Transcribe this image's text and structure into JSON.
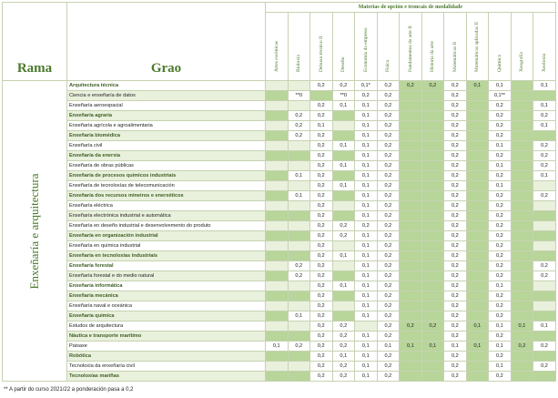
{
  "header": {
    "title": "Materias de opción e troncais de modalidade",
    "rama_label": "Rama",
    "grao_label": "Grao"
  },
  "subjects": [
    "Artes escénicas",
    "Bioloxía",
    "Debuxo técnico II",
    "Deseño",
    "Economía da empresa",
    "Física",
    "Fundamentos da arte II",
    "Historia da arte",
    "Matemáticas II",
    "Matemáticas aplicadas II",
    "Química",
    "Xeografía",
    "Xeoloxía"
  ],
  "rama": "Enxeñaría e arquitectura",
  "rows": [
    {
      "name": "Arquitectura técnica",
      "bold": true,
      "values": [
        "",
        "",
        "0,2",
        "0,2",
        "0,1*",
        "0,2",
        "0,2",
        "0,2",
        "0,2",
        "0,1",
        "0,1",
        "",
        "0,1"
      ]
    },
    {
      "name": "Ciencia e enxeñaría de datos",
      "bold": false,
      "values": [
        "",
        "**0",
        "",
        "**0",
        "0,2",
        "0,2",
        "",
        "",
        "0,2",
        "",
        "0,1**",
        "",
        ""
      ]
    },
    {
      "name": "Enxeñaría aeroespacial",
      "bold": false,
      "values": [
        "",
        "",
        "0,2",
        "0,1",
        "0,1",
        "0,2",
        "",
        "",
        "0,2",
        "",
        "0,2",
        "",
        "0,1"
      ]
    },
    {
      "name": "Enxeñaría agraria",
      "bold": true,
      "values": [
        "",
        "0,2",
        "0,2",
        "",
        "0,1",
        "0,2",
        "",
        "",
        "0,2",
        "",
        "0,2",
        "",
        "0,2"
      ]
    },
    {
      "name": "Enxeñaría agrícola e agroalimentaria",
      "bold": false,
      "values": [
        "",
        "0,2",
        "0,1",
        "",
        "0,1",
        "0,2",
        "",
        "",
        "0,2",
        "",
        "0,2",
        "",
        "0,1"
      ]
    },
    {
      "name": "Enxeñaría biomédica",
      "bold": true,
      "values": [
        "",
        "0,2",
        "0,2",
        "",
        "0,1",
        "0,2",
        "",
        "",
        "0,2",
        "",
        "0,2",
        "",
        ""
      ]
    },
    {
      "name": "Enxeñaría civil",
      "bold": false,
      "values": [
        "",
        "",
        "0,2",
        "0,1",
        "0,1",
        "0,2",
        "",
        "",
        "0,2",
        "",
        "0,1",
        "",
        "0,2"
      ]
    },
    {
      "name": "Enxeñaría da enerxía",
      "bold": true,
      "values": [
        "",
        "",
        "0,2",
        "",
        "0,1",
        "0,2",
        "",
        "",
        "0,2",
        "",
        "0,2",
        "",
        "0,2"
      ]
    },
    {
      "name": "Enxeñaría de obras públicas",
      "bold": false,
      "values": [
        "",
        "",
        "0,2",
        "0,1",
        "0,1",
        "0,2",
        "",
        "",
        "0,2",
        "",
        "0,1",
        "",
        "0,2"
      ]
    },
    {
      "name": "Enxeñaría de procesos químicos industriais",
      "bold": true,
      "values": [
        "",
        "0,1",
        "0,2",
        "",
        "0,1",
        "0,2",
        "",
        "",
        "0,2",
        "",
        "0,2",
        "",
        "0,1"
      ]
    },
    {
      "name": "Enxeñaría de tecnoloxías de telecomunicación",
      "bold": false,
      "values": [
        "",
        "",
        "0,2",
        "0,1",
        "0,1",
        "0,2",
        "",
        "",
        "0,2",
        "",
        "0,1",
        "",
        ""
      ]
    },
    {
      "name": "Enxeñaría dos recursos mineiros e enerxéticos",
      "bold": true,
      "values": [
        "",
        "0,1",
        "0,2",
        "",
        "0,1",
        "0,2",
        "",
        "",
        "0,2",
        "",
        "0,2",
        "",
        "0,2"
      ]
    },
    {
      "name": "Enxeñaría eléctrica",
      "bold": false,
      "values": [
        "",
        "",
        "0,2",
        "",
        "0,1",
        "0,2",
        "",
        "",
        "0,2",
        "",
        "0,2",
        "",
        ""
      ]
    },
    {
      "name": "Enxeñaría electrónica industrial e automática",
      "bold": false,
      "values": [
        "",
        "",
        "0,2",
        "",
        "0,1",
        "0,2",
        "",
        "",
        "0,2",
        "",
        "0,2",
        "",
        ""
      ]
    },
    {
      "name": "Enxeñaría en deseño industrial e desenvolvemento do produto",
      "bold": false,
      "values": [
        "",
        "",
        "0,2",
        "0,2",
        "0,2",
        "0,2",
        "",
        "",
        "0,2",
        "",
        "0,2",
        "",
        ""
      ]
    },
    {
      "name": "Enxeñaría en organización industrial",
      "bold": true,
      "values": [
        "",
        "",
        "0,2",
        "0,2",
        "0,1",
        "0,2",
        "",
        "",
        "0,2",
        "",
        "0,2",
        "",
        ""
      ]
    },
    {
      "name": "Enxeñaría en química industrial",
      "bold": false,
      "values": [
        "",
        "",
        "0,2",
        "",
        "0,1",
        "0,2",
        "",
        "",
        "0,2",
        "",
        "0,2",
        "",
        ""
      ]
    },
    {
      "name": "Enxeñaría en tecnoloxías industriais",
      "bold": true,
      "values": [
        "",
        "",
        "0,2",
        "0,1",
        "0,1",
        "0,2",
        "",
        "",
        "0,2",
        "",
        "0,2",
        "",
        ""
      ]
    },
    {
      "name": "Enxeñaría forestal",
      "bold": true,
      "values": [
        "",
        "0,2",
        "0,2",
        "",
        "0,1",
        "0,2",
        "",
        "",
        "0,2",
        "",
        "0,2",
        "",
        "0,2"
      ]
    },
    {
      "name": "Enxeñaría forestal e do medio natural",
      "bold": false,
      "values": [
        "",
        "0,2",
        "0,2",
        "",
        "0,1",
        "0,2",
        "",
        "",
        "0,2",
        "",
        "0,2",
        "",
        "0,2"
      ]
    },
    {
      "name": "Enxeñaría informática",
      "bold": true,
      "values": [
        "",
        "",
        "0,2",
        "0,1",
        "0,1",
        "0,2",
        "",
        "",
        "0,2",
        "",
        "0,1",
        "",
        ""
      ]
    },
    {
      "name": "Enxeñaría mecánica",
      "bold": true,
      "values": [
        "",
        "",
        "0,2",
        "",
        "0,1",
        "0,2",
        "",
        "",
        "0,2",
        "",
        "0,2",
        "",
        ""
      ]
    },
    {
      "name": "Enxeñaría naval e oceánica",
      "bold": false,
      "values": [
        "",
        "",
        "0,2",
        "",
        "0,1",
        "0,2",
        "",
        "",
        "0,2",
        "",
        "0,2",
        "",
        ""
      ]
    },
    {
      "name": "Enxeñaría química",
      "bold": true,
      "values": [
        "",
        "0,1",
        "0,2",
        "",
        "0,1",
        "0,2",
        "",
        "",
        "0,2",
        "",
        "0,2",
        "",
        ""
      ]
    },
    {
      "name": "Estudos de arquitectura",
      "bold": false,
      "values": [
        "",
        "",
        "0,2",
        "0,2",
        "",
        "0,2",
        "0,2",
        "0,2",
        "0,2",
        "0,1",
        "0,1",
        "0,1",
        "0,1"
      ]
    },
    {
      "name": "Náutica e transporte marítimo",
      "bold": true,
      "values": [
        "",
        "",
        "0,2",
        "0,2",
        "0,1",
        "0,2",
        "",
        "",
        "0,2",
        "",
        "0,2",
        "",
        ""
      ]
    },
    {
      "name": "Paisaxe",
      "bold": false,
      "values": [
        "0,1",
        "0,2",
        "0,2",
        "0,2",
        "0,1",
        "0,1",
        "0,1",
        "0,1",
        "0,1",
        "0,1",
        "0,1",
        "0,2",
        "0,2"
      ]
    },
    {
      "name": "Robótica",
      "bold": true,
      "values": [
        "",
        "",
        "0,2",
        "0,1",
        "0,1",
        "0,2",
        "",
        "",
        "0,2",
        "",
        "0,2",
        "",
        ""
      ]
    },
    {
      "name": "Tecnoloxía da enxeñaría civil",
      "bold": false,
      "values": [
        "",
        "",
        "0,2",
        "0,2",
        "0,1",
        "0,2",
        "",
        "",
        "0,2",
        "",
        "0,1",
        "",
        "0,2"
      ]
    },
    {
      "name": "Tecnoloxías mariñas",
      "bold": true,
      "values": [
        "",
        "",
        "0,2",
        "0,2",
        "0,1",
        "0,2",
        "",
        "",
        "0,2",
        "",
        "0,2",
        "",
        ""
      ]
    }
  ],
  "footnote": "** A partir do curso 2021/22 a ponderación pasa a 0,2",
  "colors": {
    "header_text": "#4b7a2c",
    "cell_green": "#b8d59a",
    "cell_pale": "#e9f1dc",
    "border": "#c6d2b2"
  }
}
